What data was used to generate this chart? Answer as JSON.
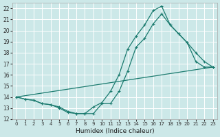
{
  "xlabel": "Humidex (Indice chaleur)",
  "ylabel": "",
  "bg_color": "#cce8e8",
  "grid_color": "#b8d8d8",
  "line_color": "#1a7a6e",
  "xlim": [
    -0.5,
    23.5
  ],
  "ylim": [
    12,
    22.5
  ],
  "yticks": [
    12,
    13,
    14,
    15,
    16,
    17,
    18,
    19,
    20,
    21,
    22
  ],
  "xticks": [
    0,
    1,
    2,
    3,
    4,
    5,
    6,
    7,
    8,
    9,
    10,
    11,
    12,
    13,
    14,
    15,
    16,
    17,
    18,
    19,
    20,
    21,
    22,
    23
  ],
  "line1_x": [
    0,
    1,
    2,
    3,
    4,
    5,
    6,
    7,
    8,
    9,
    10,
    11,
    12,
    13,
    14,
    15,
    16,
    17,
    18,
    19,
    20,
    21,
    22,
    23
  ],
  "line1_y": [
    14.0,
    13.8,
    13.7,
    13.4,
    13.3,
    13.0,
    12.6,
    12.5,
    12.5,
    12.5,
    13.4,
    13.4,
    14.5,
    16.3,
    18.5,
    19.3,
    20.6,
    21.5,
    20.5,
    19.7,
    18.9,
    18.0,
    17.2,
    16.7
  ],
  "line2_x": [
    0,
    1,
    2,
    3,
    4,
    5,
    6,
    7,
    8,
    9,
    10,
    11,
    12,
    13,
    14,
    15,
    16,
    17,
    18,
    19,
    20,
    21,
    22,
    23
  ],
  "line2_y": [
    14.0,
    13.8,
    13.7,
    13.4,
    13.3,
    13.1,
    12.7,
    12.5,
    12.5,
    13.1,
    13.5,
    14.5,
    16.0,
    18.3,
    19.5,
    20.5,
    21.8,
    22.2,
    20.5,
    19.7,
    18.9,
    17.2,
    16.7,
    16.7
  ],
  "line3_x": [
    0,
    23
  ],
  "line3_y": [
    14.0,
    16.7
  ]
}
